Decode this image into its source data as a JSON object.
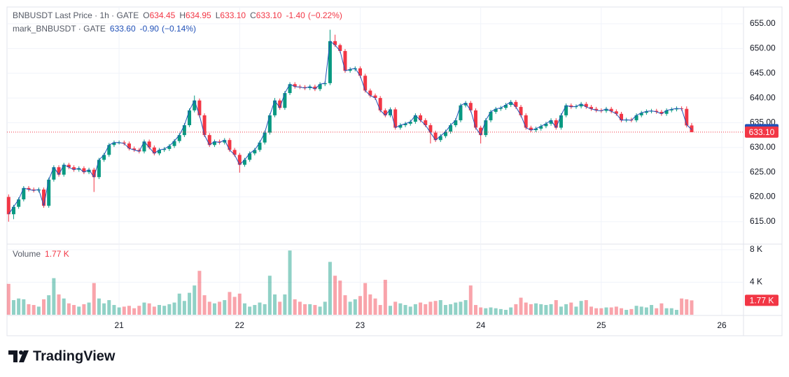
{
  "chart_data": {
    "type": "candlestick",
    "title": "BNBUSDT Last Price · 1h · GATE",
    "legend": [
      {
        "label": "O",
        "value": "634.45"
      },
      {
        "label": "H",
        "value": "634.95"
      },
      {
        "label": "L",
        "value": "633.10"
      },
      {
        "label": "C",
        "value": "633.10"
      }
    ],
    "change": "-1.40",
    "change_pct": "(−0.22%)",
    "up_color": "#089981",
    "down_color": "#f23645",
    "xlim": [
      20.07,
      26.18
    ],
    "xticks": [
      21,
      22,
      23,
      24,
      25,
      26
    ],
    "ylim": [
      610.6,
      658.4
    ],
    "yticks": [
      {
        "value": 615,
        "label": "615.00"
      },
      {
        "value": 620,
        "label": "620.00"
      },
      {
        "value": 625,
        "label": "625.00"
      },
      {
        "value": 630,
        "label": "630.00"
      },
      {
        "value": 635,
        "label": "635.00"
      },
      {
        "value": 640,
        "label": "640.00"
      },
      {
        "value": 645,
        "label": "645.00"
      },
      {
        "value": 650,
        "label": "650.00"
      },
      {
        "value": 655,
        "label": "655.00"
      }
    ],
    "grid": true,
    "last_price": {
      "value": 633.1,
      "label": "633.10"
    },
    "x": [
      20.0833,
      20.125,
      20.1667,
      20.2083,
      20.25,
      20.2917,
      20.3333,
      20.375,
      20.4167,
      20.4583,
      20.5,
      20.5417,
      20.5833,
      20.625,
      20.6667,
      20.7083,
      20.75,
      20.7917,
      20.8333,
      20.875,
      20.9167,
      20.9583,
      21,
      21.0417,
      21.0833,
      21.125,
      21.1667,
      21.2083,
      21.25,
      21.2917,
      21.3333,
      21.375,
      21.4167,
      21.4583,
      21.5,
      21.5417,
      21.5833,
      21.625,
      21.6667,
      21.7083,
      21.75,
      21.7917,
      21.8333,
      21.875,
      21.9167,
      21.9583,
      22,
      22.0417,
      22.0833,
      22.125,
      22.1667,
      22.2083,
      22.25,
      22.2917,
      22.3333,
      22.375,
      22.4167,
      22.4583,
      22.5,
      22.5417,
      22.5833,
      22.625,
      22.6667,
      22.7083,
      22.75,
      22.7917,
      22.8333,
      22.875,
      22.9167,
      22.9583,
      23,
      23.0417,
      23.0833,
      23.125,
      23.1667,
      23.2083,
      23.25,
      23.2917,
      23.3333,
      23.375,
      23.4167,
      23.4583,
      23.5,
      23.5417,
      23.5833,
      23.625,
      23.6667,
      23.7083,
      23.75,
      23.7917,
      23.8333,
      23.875,
      23.9167,
      23.9583,
      24,
      24.0417,
      24.0833,
      24.125,
      24.1667,
      24.2083,
      24.25,
      24.2917,
      24.3333,
      24.375,
      24.4167,
      24.4583,
      24.5,
      24.5417,
      24.5833,
      24.625,
      24.6667,
      24.7083,
      24.75,
      24.7917,
      24.8333,
      24.875,
      24.9167,
      24.9583,
      25,
      25.0417,
      25.0833,
      25.125,
      25.1667,
      25.2083,
      25.25,
      25.2917,
      25.3333,
      25.375,
      25.4167,
      25.4583,
      25.5,
      25.5417,
      25.5833,
      25.625,
      25.6667,
      25.7083,
      25.75
    ],
    "open": [
      620,
      616.5,
      618,
      619.5,
      621.8,
      621.5,
      621.3,
      621.5,
      618.2,
      623.5,
      626,
      624.5,
      626.5,
      626,
      625.5,
      625.8,
      625,
      625.5,
      624,
      627.5,
      628.5,
      630.5,
      631,
      631,
      630.8,
      629.8,
      629.5,
      629.2,
      631.2,
      630,
      628.8,
      629.5,
      629.7,
      630.3,
      631.3,
      632.5,
      634.5,
      637.5,
      639.5,
      636.5,
      632.5,
      630.5,
      631.2,
      631,
      631.5,
      629.5,
      628.5,
      626.5,
      627.5,
      628.8,
      629.5,
      631,
      633,
      636.5,
      639.5,
      638,
      641,
      642.8,
      642.3,
      642.2,
      642,
      642.3,
      641.8,
      642.8,
      643,
      651.5,
      650.7,
      649.5,
      645.5,
      645.8,
      646,
      644.5,
      641.5,
      640.5,
      640,
      637.5,
      636.5,
      637.7,
      634,
      634.5,
      634.8,
      635.2,
      636.5,
      635.5,
      634.5,
      633,
      631.5,
      632.3,
      633.2,
      634.5,
      635.5,
      638.5,
      639,
      637.5,
      634,
      632.5,
      635.5,
      637.2,
      637.8,
      638,
      638.6,
      639.2,
      638.2,
      636.5,
      634,
      633.5,
      633.8,
      634.3,
      634.8,
      635.5,
      634,
      636.5,
      638.5,
      638.2,
      638.3,
      638.8,
      638.2,
      637.8,
      637.5,
      637.4,
      637.8,
      637.3,
      636.8,
      635.5,
      635.6,
      635.5,
      636.5,
      637,
      637.3,
      637.4,
      637.2,
      636.8,
      637.5,
      637.7,
      637.9,
      637.8,
      634.45
    ],
    "high": [
      620.5,
      618.4,
      619.9,
      622.2,
      622.2,
      621.9,
      621.9,
      621.9,
      623.9,
      626.4,
      626.4,
      626.9,
      626.9,
      626.4,
      626.2,
      626.2,
      625.9,
      625.9,
      627.9,
      628.9,
      630.9,
      631.4,
      631.4,
      631.4,
      631.2,
      630.2,
      629.9,
      631.6,
      631.6,
      630.4,
      629.9,
      630.1,
      630.7,
      631.7,
      632.9,
      634.9,
      637.9,
      640.5,
      639.9,
      636.9,
      632.9,
      631.6,
      631.6,
      631.9,
      631.9,
      629.9,
      628.9,
      627.9,
      629.2,
      629.9,
      631.4,
      633.4,
      636.9,
      640,
      639.9,
      641.4,
      643.2,
      643.2,
      642.7,
      642.6,
      642.7,
      642.7,
      643.2,
      643.4,
      653.8,
      652.8,
      651,
      649.9,
      646.2,
      646.4,
      646.4,
      644.9,
      641.9,
      640.9,
      640.4,
      637.9,
      638.1,
      638.1,
      634.9,
      635.2,
      635.6,
      636.9,
      636.9,
      635.9,
      634.9,
      633.4,
      632.7,
      633.6,
      634.9,
      635.9,
      638.9,
      639.4,
      639.4,
      637.9,
      634.4,
      635.9,
      637.6,
      638.2,
      638.4,
      639,
      639.6,
      639.6,
      638.6,
      636.9,
      634.4,
      634.2,
      634.7,
      635.2,
      635.9,
      635.9,
      636.9,
      638.9,
      638.9,
      638.7,
      639.2,
      639.2,
      638.6,
      638.2,
      637.9,
      638.2,
      638.2,
      637.7,
      637.2,
      636,
      636,
      636.9,
      637.4,
      637.7,
      637.8,
      637.8,
      637.6,
      637.9,
      638.1,
      638.3,
      638.3,
      638.3,
      634.95
    ],
    "low": [
      615,
      615.5,
      617.6,
      619.1,
      621.1,
      620.9,
      620.9,
      617.8,
      617.8,
      623.1,
      624.1,
      624.1,
      625.6,
      625.1,
      625.1,
      624.6,
      624.6,
      621,
      623.6,
      627.1,
      628.1,
      630.1,
      630.6,
      630.4,
      629.4,
      629.1,
      628.8,
      628.8,
      629.6,
      628.4,
      628.4,
      629.1,
      629.3,
      629.9,
      630.9,
      632.1,
      634.1,
      637.1,
      636.1,
      632.1,
      630.1,
      630.1,
      630.6,
      630.6,
      629.1,
      628.1,
      624.9,
      626.1,
      627.1,
      628.4,
      629.1,
      630.6,
      632.6,
      636.1,
      637.6,
      637.6,
      640.6,
      641.9,
      641.8,
      641.6,
      641.6,
      641.4,
      641.4,
      642.4,
      642.6,
      650.3,
      649.1,
      645.1,
      645.1,
      645.4,
      644.1,
      641.1,
      640.1,
      639.6,
      637.1,
      636.1,
      636.1,
      633.6,
      633.6,
      634.1,
      634.4,
      634.8,
      635.1,
      634.1,
      630.8,
      631.1,
      631.1,
      631.9,
      632.8,
      634.1,
      635.1,
      638.1,
      637.1,
      633.6,
      630.8,
      632.1,
      635.1,
      636.8,
      637.4,
      637.6,
      638.2,
      637.8,
      636.1,
      633.6,
      633.1,
      633.1,
      633.4,
      633.9,
      634.4,
      633.6,
      633.6,
      636.1,
      637.8,
      637.8,
      637.9,
      637.8,
      637.4,
      637.1,
      637,
      637,
      636.9,
      636.4,
      635.1,
      635.1,
      635.1,
      635.1,
      636.1,
      636.6,
      636.9,
      636.8,
      636.4,
      636.4,
      637.1,
      637.3,
      637.4,
      634.05,
      633.1
    ],
    "close": [
      616.5,
      618,
      619.5,
      621.8,
      621.5,
      621.3,
      621.5,
      618.2,
      623.5,
      626,
      624.5,
      626.5,
      626,
      625.5,
      625.8,
      625,
      625.5,
      624,
      627.5,
      628.5,
      630.5,
      631,
      631,
      630.8,
      629.8,
      629.5,
      629.2,
      631.2,
      630,
      628.8,
      629.5,
      629.7,
      630.3,
      631.3,
      632.5,
      634.5,
      637.5,
      639.5,
      636.5,
      632.5,
      630.5,
      631.2,
      631,
      631.5,
      629.5,
      628.5,
      626.5,
      627.5,
      628.8,
      629.5,
      631,
      633,
      636.5,
      639.5,
      638,
      641,
      642.8,
      642.3,
      642.2,
      642,
      642.3,
      641.8,
      642.8,
      643,
      651.5,
      650.7,
      649.5,
      645.5,
      645.8,
      646,
      644.5,
      641.5,
      640.5,
      640,
      637.5,
      636.5,
      637.7,
      634,
      634.5,
      634.8,
      635.2,
      636.5,
      635.5,
      634.5,
      633,
      631.5,
      632.3,
      633.2,
      634.5,
      635.5,
      638.5,
      639,
      637.5,
      634,
      632.5,
      635.5,
      637.2,
      637.8,
      638,
      638.6,
      639.2,
      638.2,
      636.5,
      634,
      633.5,
      633.8,
      634.3,
      634.8,
      635.5,
      634,
      636.5,
      638.5,
      638.2,
      638.3,
      638.8,
      638.2,
      637.8,
      637.5,
      637.4,
      637.8,
      637.3,
      636.8,
      635.5,
      635.6,
      635.5,
      636.5,
      637,
      637.3,
      637.4,
      637.2,
      636.8,
      637.5,
      637.7,
      637.9,
      637.8,
      634.45,
      633.1
    ],
    "series": [
      {
        "name": "mark_BNBUSDT · GATE",
        "color": "#2151b8",
        "value_label": "633.60",
        "change": "-0.90",
        "change_pct": "(−0.14%)",
        "values": [
          616.5,
          618,
          619.5,
          621.8,
          621.5,
          621.3,
          621.5,
          618.2,
          623.5,
          626,
          624.5,
          626.5,
          626,
          625.5,
          625.8,
          625,
          625.5,
          624,
          627.5,
          628.5,
          630.5,
          631,
          631,
          630.8,
          629.8,
          629.5,
          629.2,
          631.2,
          630,
          628.8,
          629.5,
          629.7,
          630.3,
          631.3,
          632.5,
          634.5,
          637.5,
          639.5,
          636.5,
          632.5,
          630.5,
          631.2,
          631,
          631.5,
          629.5,
          628.5,
          626.5,
          627.5,
          628.8,
          629.5,
          631,
          633,
          636.5,
          639.5,
          638,
          641,
          642.8,
          642.3,
          642.2,
          642,
          642.3,
          641.8,
          642.8,
          643,
          651.5,
          650.7,
          649.5,
          645.5,
          645.8,
          646,
          644.5,
          641.5,
          640.5,
          640,
          637.5,
          636.5,
          637.7,
          634,
          634.5,
          634.8,
          635.2,
          636.5,
          635.5,
          634.5,
          633,
          631.5,
          632.3,
          633.2,
          634.5,
          635.5,
          638.5,
          639,
          637.5,
          634,
          632.5,
          635.5,
          637.2,
          637.8,
          638,
          638.6,
          639.2,
          638.2,
          636.5,
          634,
          633.5,
          633.8,
          634.3,
          634.8,
          635.5,
          634,
          636.5,
          638.5,
          638.2,
          638.3,
          638.8,
          638.2,
          637.8,
          637.5,
          637.4,
          637.8,
          637.3,
          636.8,
          635.5,
          635.6,
          635.5,
          636.5,
          637,
          637.3,
          637.4,
          637.2,
          636.8,
          637.5,
          637.7,
          637.9,
          637.8,
          634.6,
          633.6
        ]
      }
    ],
    "volume": {
      "name": "Volume",
      "ylim": [
        0,
        8.6
      ],
      "yticks": [
        {
          "value": 4,
          "label": "4 K"
        },
        {
          "value": 8,
          "label": "8 K"
        }
      ],
      "last": {
        "value": 1.77,
        "label": "1.77 K"
      },
      "values": [
        3.8,
        1.8,
        2.0,
        1.9,
        1.3,
        1.2,
        1.0,
        1.9,
        2.4,
        4.5,
        2.5,
        2.0,
        1.4,
        1.2,
        1.0,
        1.3,
        1.5,
        3.9,
        2.0,
        1.4,
        1.8,
        1.2,
        0.9,
        1.0,
        1.1,
        0.8,
        1.1,
        1.5,
        1.4,
        1.0,
        1.2,
        1.1,
        1.3,
        1.5,
        2.6,
        1.7,
        2.7,
        3.6,
        5.4,
        2.4,
        1.6,
        1.4,
        1.6,
        1.8,
        2.8,
        2.2,
        2.6,
        1.4,
        1.0,
        1.2,
        1.5,
        1.3,
        4.8,
        2.5,
        1.6,
        2.5,
        7.9,
        1.9,
        1.6,
        1.3,
        1.3,
        1.2,
        1.0,
        1.6,
        6.5,
        4.8,
        4.2,
        2.4,
        1.6,
        1.9,
        2.3,
        3.9,
        2.5,
        2.0,
        1.2,
        4.3,
        1.1,
        1.6,
        1.4,
        1.2,
        1.0,
        1.3,
        1.5,
        1.3,
        1.6,
        1.7,
        1.8,
        1.2,
        1.3,
        1.5,
        1.6,
        1.8,
        3.6,
        1.2,
        0.9,
        0.8,
        0.9,
        0.8,
        0.7,
        0.6,
        0.9,
        1.3,
        2.1,
        1.5,
        1.3,
        1.4,
        1.3,
        1.2,
        1.3,
        1.8,
        1.0,
        1.3,
        1.5,
        1.0,
        1.7,
        1.8,
        1.0,
        0.8,
        0.8,
        0.9,
        0.9,
        1.0,
        0.8,
        0.6,
        0.7,
        1.1,
        1.0,
        0.9,
        1.2,
        0.8,
        1.4,
        0.8,
        0.8,
        0.6,
        2.0,
        1.9,
        1.77
      ]
    }
  },
  "brand": "TradingView"
}
